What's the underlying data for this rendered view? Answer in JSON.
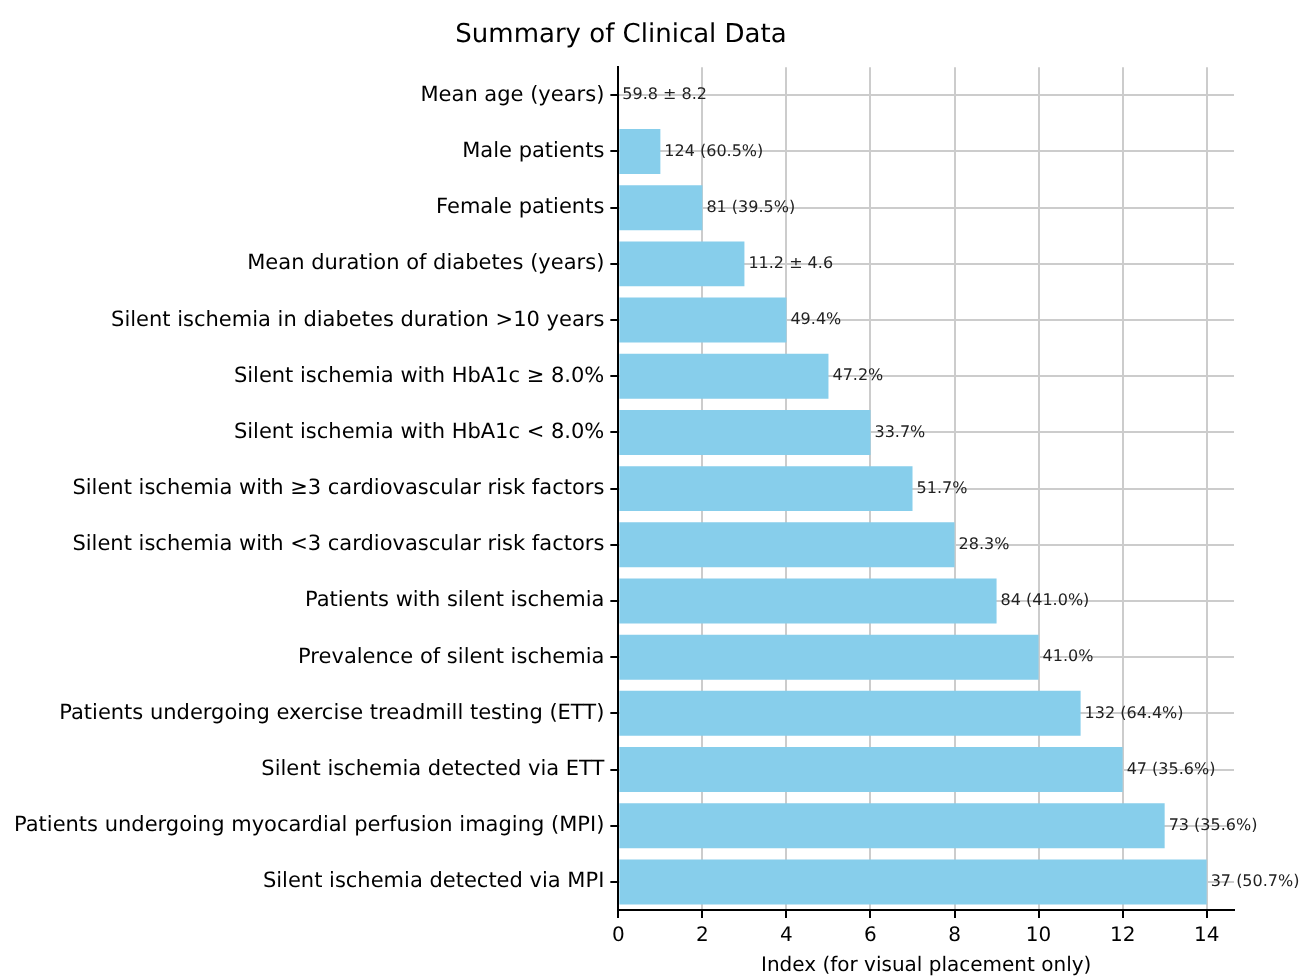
{
  "chart_data": {
    "type": "bar",
    "orientation": "horizontal",
    "title": "Summary of Clinical Data",
    "xlabel": "Index (for visual placement only)",
    "categories": [
      "Mean age (years)",
      "Male patients",
      "Female patients",
      "Mean duration of diabetes (years)",
      "Silent ischemia in diabetes duration >10 years",
      "Silent ischemia with HbA1c ≥ 8.0%",
      "Silent ischemia with HbA1c < 8.0%",
      "Silent ischemia with ≥3 cardiovascular risk factors",
      "Silent ischemia with <3 cardiovascular risk factors",
      "Patients with silent ischemia",
      "Prevalence of silent ischemia",
      "Patients undergoing exercise treadmill testing (ETT)",
      "Silent ischemia detected via ETT",
      "Patients undergoing myocardial perfusion imaging (MPI)",
      "Silent ischemia detected via MPI"
    ],
    "values": [
      0,
      1,
      2,
      3,
      4,
      5,
      6,
      7,
      8,
      9,
      10,
      11,
      12,
      13,
      14
    ],
    "annotations": [
      {
        "text": "59.8 ± 8.2",
        "x": 0,
        "y": "Mean age (years)"
      },
      {
        "text": "124 (60.5%)",
        "x": 1,
        "y": "Male patients"
      },
      {
        "text": "81 (39.5%)",
        "x": 2,
        "y": "Female patients"
      },
      {
        "text": "11.2 ± 4.6",
        "x": 3,
        "y": "Mean duration of diabetes (years)"
      },
      {
        "text": "49.4%",
        "x": 4,
        "y": "Silent ischemia in diabetes duration >10 years"
      },
      {
        "text": "47.2%",
        "x": 5,
        "y": "Silent ischemia with HbA1c ≥ 8.0%"
      },
      {
        "text": "33.7%",
        "x": 6,
        "y": "Silent ischemia with HbA1c < 8.0%"
      },
      {
        "text": "51.7%",
        "x": 7,
        "y": "Silent ischemia with ≥3 cardiovascular risk factors"
      },
      {
        "text": "28.3%",
        "x": 8,
        "y": "Silent ischemia with <3 cardiovascular risk factors"
      },
      {
        "text": "84 (41.0%)",
        "x": 9,
        "y": "Patients with silent ischemia"
      },
      {
        "text": "41.0%",
        "x": 10,
        "y": "Prevalence of silent ischemia"
      },
      {
        "text": "132 (64.4%)",
        "x": 11,
        "y": "Patients undergoing exercise treadmill testing (ETT)"
      },
      {
        "text": "47 (35.6%)",
        "x": 12,
        "y": "Silent ischemia detected via ETT"
      },
      {
        "text": "73 (35.6%)",
        "x": 13,
        "y": "Patients undergoing myocardial perfusion imaging (MPI)"
      },
      {
        "text": "37 (50.7%)",
        "x": 14,
        "y": "Silent ischemia detected via MPI"
      }
    ],
    "color": "#87ceeb",
    "xlim": [
      0,
      14.65
    ],
    "xticks": [
      0,
      2,
      4,
      6,
      8,
      10,
      12,
      14
    ],
    "grid": true,
    "legend": false
  }
}
